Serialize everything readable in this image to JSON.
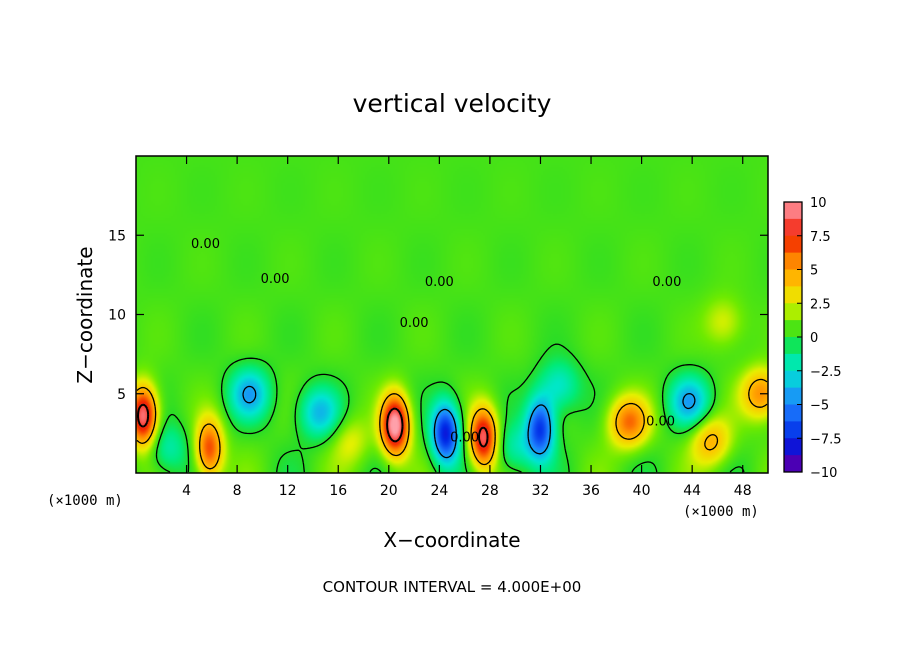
{
  "chart_data": {
    "type": "heatmap",
    "title": "vertical velocity",
    "xlabel": "X−coordinate",
    "ylabel": "Z−coordinate",
    "x_unit": "(×1000 m)",
    "x_unit_right": "(×1000 m)",
    "xlim": [
      0,
      50
    ],
    "ylim": [
      0,
      20
    ],
    "x_ticks": [
      4,
      8,
      12,
      16,
      20,
      24,
      28,
      32,
      36,
      40,
      44,
      48
    ],
    "y_ticks": [
      5,
      10,
      15
    ],
    "colorbar": {
      "range": [
        -10,
        10
      ],
      "ticks": [
        10,
        7.5,
        5,
        2.5,
        0,
        -2.5,
        -5,
        -7.5,
        -10
      ],
      "tick_labels": [
        "10",
        "7.5",
        "5",
        "2.5",
        "0",
        "−2.5",
        "−5",
        "−7.5",
        "−10"
      ]
    },
    "background_value": 0.5,
    "contour_label_text": "0.00",
    "contour_labels": [
      {
        "x": 5.5,
        "z": 14.2,
        "text": "0.00"
      },
      {
        "x": 11.0,
        "z": 12.0,
        "text": "0.00"
      },
      {
        "x": 22.0,
        "z": 9.2,
        "text": "0.00"
      },
      {
        "x": 24.0,
        "z": 11.8,
        "text": "0.00"
      },
      {
        "x": 26.0,
        "z": 2.0,
        "text": "0.00"
      },
      {
        "x": 42.0,
        "z": 11.8,
        "text": "0.00"
      },
      {
        "x": 41.5,
        "z": 3.0,
        "text": "0.00"
      }
    ],
    "features": [
      {
        "x": 0.6,
        "z": 3.6,
        "value": 9.0
      },
      {
        "x": 5.8,
        "z": 1.5,
        "value": 6.5
      },
      {
        "x": 20.5,
        "z": 3.0,
        "value": 10.0
      },
      {
        "x": 27.5,
        "z": 2.2,
        "value": 8.5
      },
      {
        "x": 24.5,
        "z": 2.5,
        "value": -8.5
      },
      {
        "x": 32.0,
        "z": 2.8,
        "value": -7.5
      },
      {
        "x": 39.0,
        "z": 3.2,
        "value": 5.5
      },
      {
        "x": 49.5,
        "z": 5.0,
        "value": 5.0
      },
      {
        "x": 9.0,
        "z": 5.0,
        "value": -4.5
      },
      {
        "x": 14.5,
        "z": 3.8,
        "value": -4.0
      },
      {
        "x": 43.8,
        "z": 4.5,
        "value": -4.5
      },
      {
        "x": 45.5,
        "z": 2.0,
        "value": 4.0
      },
      {
        "x": 33.5,
        "z": 5.5,
        "value": -3.0
      },
      {
        "x": 46.5,
        "z": 9.5,
        "value": 2.0
      },
      {
        "x": 2.5,
        "z": 1.5,
        "value": -2.5
      },
      {
        "x": 17.0,
        "z": 2.0,
        "value": 2.0
      },
      {
        "x": 30.0,
        "z": 1.5,
        "value": -2.5
      }
    ]
  },
  "footer": {
    "contour_interval": "CONTOUR INTERVAL = 4.000E+00"
  },
  "colors": {
    "frame": "#000000",
    "contour": "#000000",
    "background": "#ffffff"
  }
}
